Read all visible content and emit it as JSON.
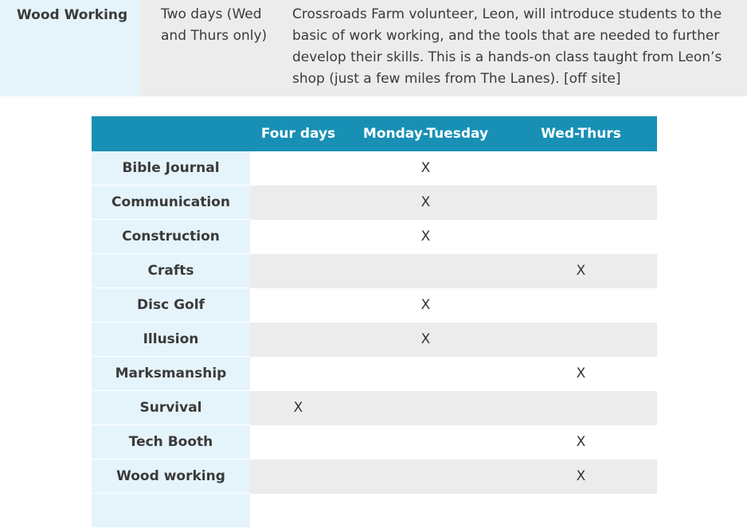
{
  "top_row": {
    "name": "Wood Working",
    "duration": "Two days (Wed and Thurs only)",
    "description": "Crossroads Farm volunteer, Leon, will introduce students to the basic of work working, and the tools that are needed to further develop their skills. This is a hands-on class taught from Leon’s shop (just a few miles from The Lanes). [off site]"
  },
  "table": {
    "headers": [
      "",
      "Four days",
      "Monday-Tuesday",
      "Wed-Thurs"
    ],
    "rows": [
      {
        "name": "Bible Journal",
        "four_days": "",
        "mon_tue": "X",
        "wed_thu": ""
      },
      {
        "name": "Communication",
        "four_days": "",
        "mon_tue": "X",
        "wed_thu": ""
      },
      {
        "name": "Construction",
        "four_days": "",
        "mon_tue": "X",
        "wed_thu": ""
      },
      {
        "name": "Crafts",
        "four_days": "",
        "mon_tue": "",
        "wed_thu": "X"
      },
      {
        "name": "Disc Golf",
        "four_days": "",
        "mon_tue": "X",
        "wed_thu": ""
      },
      {
        "name": "Illusion",
        "four_days": "",
        "mon_tue": "X",
        "wed_thu": ""
      },
      {
        "name": "Marksmanship",
        "four_days": "",
        "mon_tue": "",
        "wed_thu": "X"
      },
      {
        "name": "Survival",
        "four_days": "X",
        "mon_tue": "",
        "wed_thu": ""
      },
      {
        "name": "Tech Booth",
        "four_days": "",
        "mon_tue": "",
        "wed_thu": "X"
      },
      {
        "name": "Wood working",
        "four_days": "",
        "mon_tue": "",
        "wed_thu": "X"
      }
    ]
  },
  "colors": {
    "header_bg": "#1890b5",
    "name_col_bg": "#e5f4fa",
    "alt_row_bg": "#ececec"
  }
}
